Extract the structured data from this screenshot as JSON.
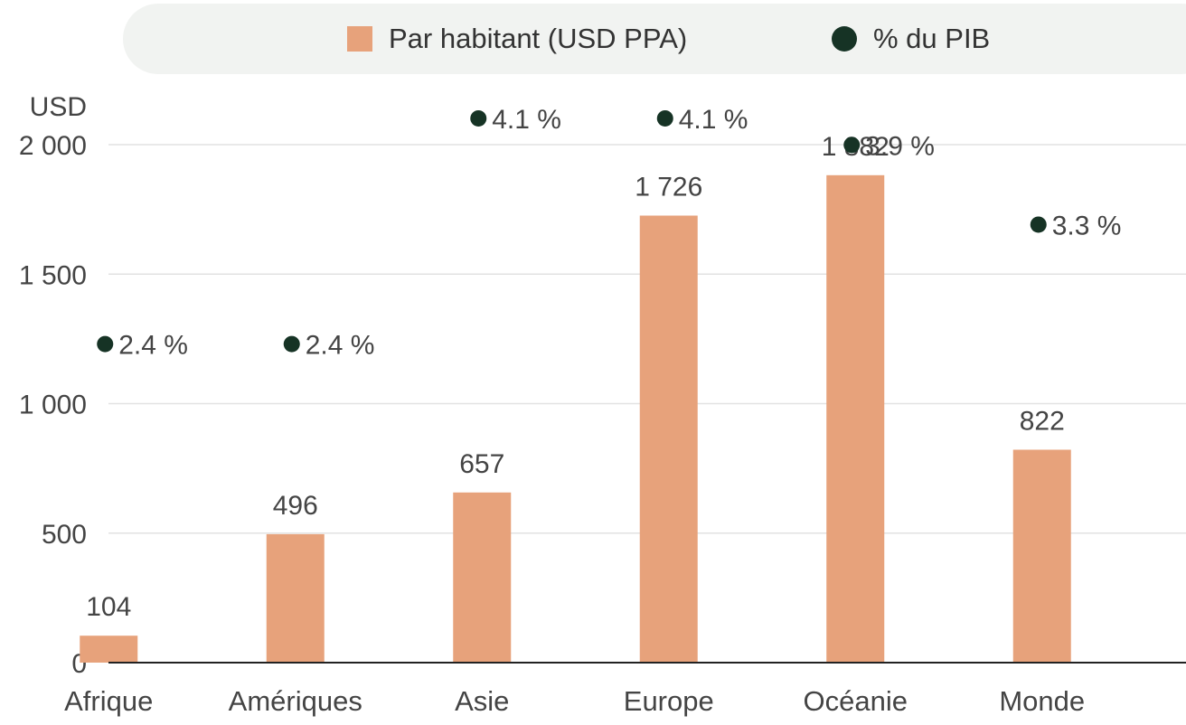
{
  "legend": {
    "bar_label": "Par habitant (USD PPA)",
    "dot_label": "% du PIB"
  },
  "colors": {
    "bar": "#e7a27b",
    "dot": "#163325",
    "grid": "#e2e2e2",
    "axis": "#222222",
    "legend_bg": "#f1f3f1"
  },
  "chart_data": {
    "type": "bar",
    "categories": [
      "Afrique",
      "Amériques",
      "Asie",
      "Europe",
      "Océanie",
      "Monde"
    ],
    "series": [
      {
        "name": "Par habitant (USD PPA)",
        "values": [
          104,
          496,
          657,
          1726,
          1882,
          822
        ],
        "value_labels": [
          "104",
          "496",
          "657",
          "1 726",
          "1 882",
          "822"
        ]
      },
      {
        "name": "% du PIB",
        "values": [
          2.4,
          2.4,
          4.1,
          4.1,
          3.9,
          3.3
        ],
        "value_labels": [
          "2.4 %",
          "2.4 %",
          "4.1 %",
          "4.1 %",
          "3.9 %",
          "3.3 %"
        ]
      }
    ],
    "y_unit": "USD",
    "ylim": [
      0,
      2000
    ],
    "y_ticks": [
      0,
      500,
      1000,
      1500,
      2000
    ],
    "y_tick_labels": [
      "0",
      "500",
      "1 000",
      "1 500",
      "2 000"
    ],
    "pct_scale_ref": {
      "value": 2.4,
      "usd": 1230
    },
    "grid": true,
    "legend_position": "top"
  }
}
